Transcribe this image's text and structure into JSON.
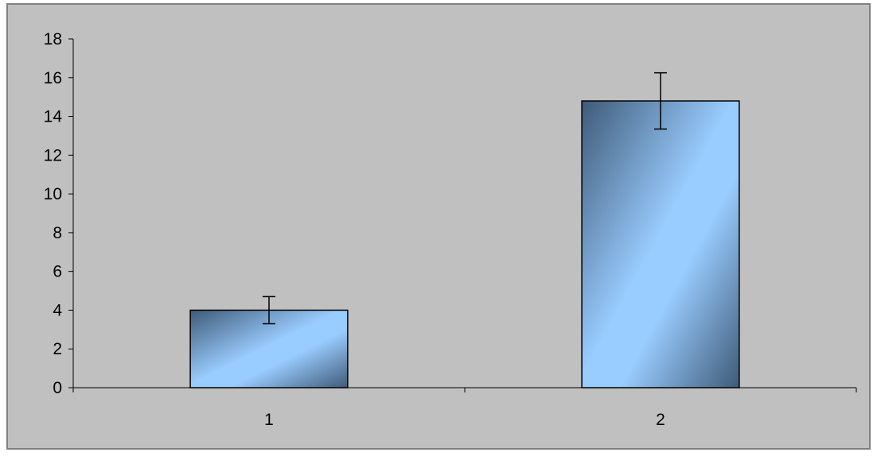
{
  "chart_data": {
    "type": "bar",
    "categories": [
      "1",
      "2"
    ],
    "values": [
      4.0,
      14.8
    ],
    "error": [
      0.7,
      1.45
    ],
    "ylim": [
      0,
      18
    ],
    "yticks": [
      "0",
      "2",
      "4",
      "6",
      "8",
      "10",
      "12",
      "14",
      "16",
      "18"
    ],
    "grid": false,
    "legend": "none",
    "colors": {
      "plot_background": "#c0c0c0",
      "bar_light": "#99ccff",
      "bar_dark": "#3f5a78",
      "axis": "#000000",
      "frame_border": "#808080"
    }
  }
}
